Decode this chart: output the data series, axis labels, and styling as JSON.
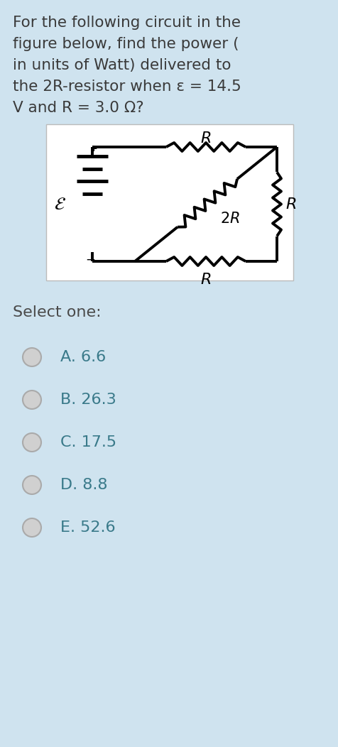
{
  "bg_color": "#cfe3ef",
  "question_text_lines": [
    "For the following circuit in the",
    "figure below, find the power (",
    "in units of Watt) delivered to",
    "the 2R-resistor when ε = 14.5",
    "V and R = 3.0 Ω?"
  ],
  "question_fontsize": 15.5,
  "question_color": "#3a3a3a",
  "circuit_bg": "#ffffff",
  "select_text": "Select one:",
  "options": [
    "A. 6.6",
    "B. 26.3",
    "C. 17.5",
    "D. 8.8",
    "E. 52.6"
  ],
  "options_fontsize": 16,
  "options_color": "#3a7a8a",
  "select_color": "#4a4a4a",
  "select_fontsize": 16,
  "radio_fill": "#d0d0d0",
  "radio_edge": "#aaaaaa"
}
